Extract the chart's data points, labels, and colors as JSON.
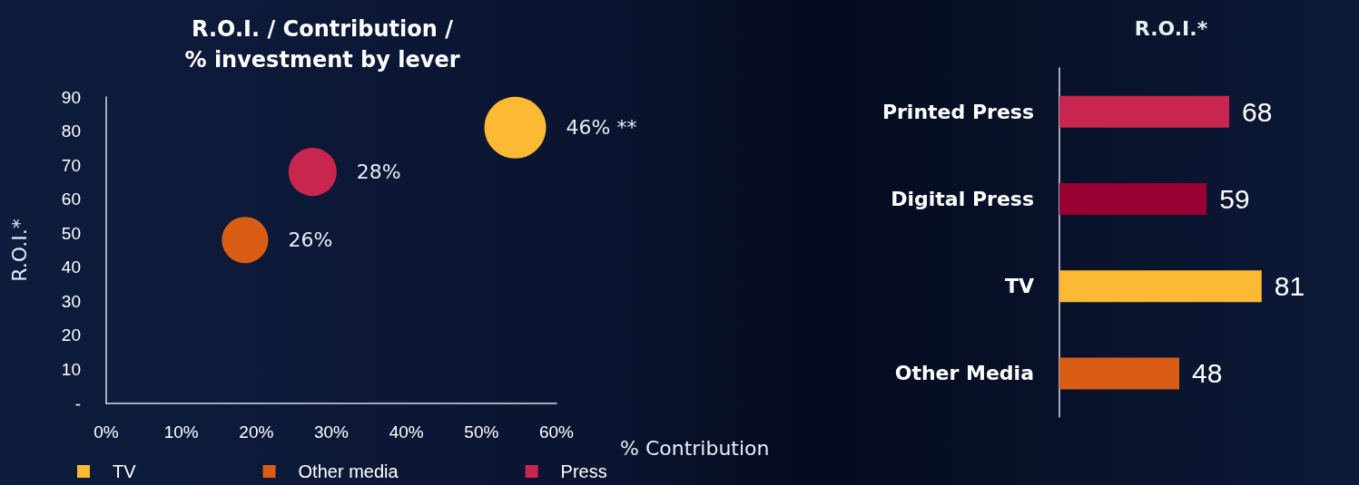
{
  "chart_data": [
    {
      "type": "bubble",
      "title": "R.O.I. / Contribution /\n% investment by lever",
      "xlabel": "% Contribution",
      "ylabel": "R.O.I.*",
      "series": [
        {
          "name": "TV",
          "color": "#fbb934",
          "x": [
            54.5
          ],
          "values": [
            81
          ],
          "sizes": [
            46
          ],
          "value_labels": [
            "46% **"
          ]
        },
        {
          "name": "Other media",
          "color": "#d95d14",
          "x": [
            18.5
          ],
          "values": [
            48
          ],
          "sizes": [
            26
          ],
          "value_labels": [
            "26%"
          ]
        },
        {
          "name": "Press",
          "color": "#c9264f",
          "x": [
            27.5
          ],
          "values": [
            68
          ],
          "sizes": [
            28
          ],
          "value_labels": [
            "28%"
          ]
        }
      ],
      "xlim": [
        0,
        60
      ],
      "xticks": [
        {
          "value": 0,
          "label": "0%"
        },
        {
          "value": 10,
          "label": "10%"
        },
        {
          "value": 20,
          "label": "20%"
        },
        {
          "value": 30,
          "label": "30%"
        },
        {
          "value": 40,
          "label": "40%"
        },
        {
          "value": 50,
          "label": "50%"
        },
        {
          "value": 60,
          "label": "60%"
        }
      ],
      "ylim": [
        0,
        90
      ],
      "yticks": [
        {
          "value": 0,
          "label": "-"
        },
        10,
        20,
        30,
        40,
        50,
        60,
        70,
        80,
        90
      ],
      "legend": "bottom",
      "marker": "circle"
    },
    {
      "type": "bar",
      "title": "R.O.I.*",
      "orientation": "horizontal",
      "data_labels": true,
      "categories": [
        "Printed Press",
        "Digital Press",
        "TV",
        "Other Media"
      ],
      "values": [
        68,
        59,
        81,
        48
      ],
      "colors": [
        "#c9264f",
        "#970031",
        "#fbb934",
        "#d95d14"
      ]
    }
  ]
}
